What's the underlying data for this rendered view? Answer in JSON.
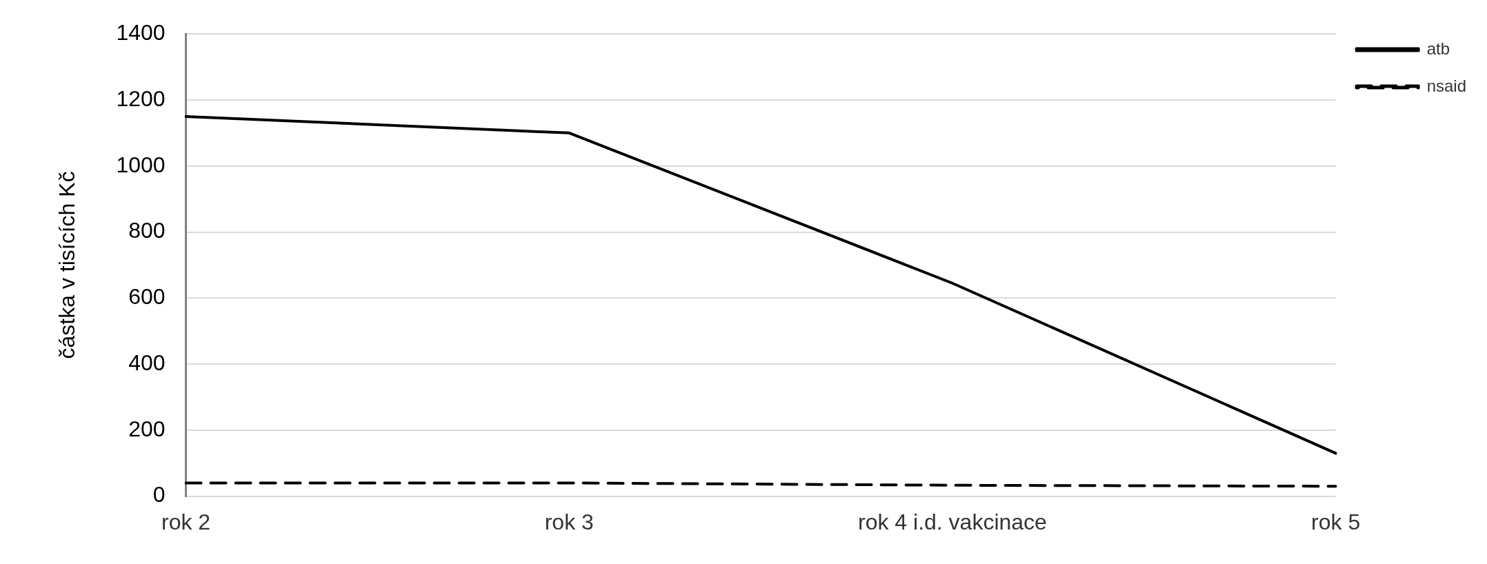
{
  "chart_data": {
    "type": "line",
    "ylabel": "částka v tisících Kč",
    "categories": [
      "rok 2",
      "rok 3",
      "rok 4 i.d. vakcinace",
      "rok 5"
    ],
    "series": [
      {
        "name": "atb",
        "color": "#000000",
        "line_style": "solid",
        "values": [
          1150,
          1100,
          645,
          130
        ]
      },
      {
        "name": "nsaid",
        "color": "#000000",
        "line_style": "dashed",
        "values": [
          40,
          40,
          33,
          30
        ]
      }
    ],
    "ylim": [
      0,
      1400
    ],
    "yticks": [
      0,
      200,
      400,
      600,
      800,
      1000,
      1200,
      1400
    ],
    "grid": "y",
    "legend": "top right",
    "marker": "none"
  }
}
